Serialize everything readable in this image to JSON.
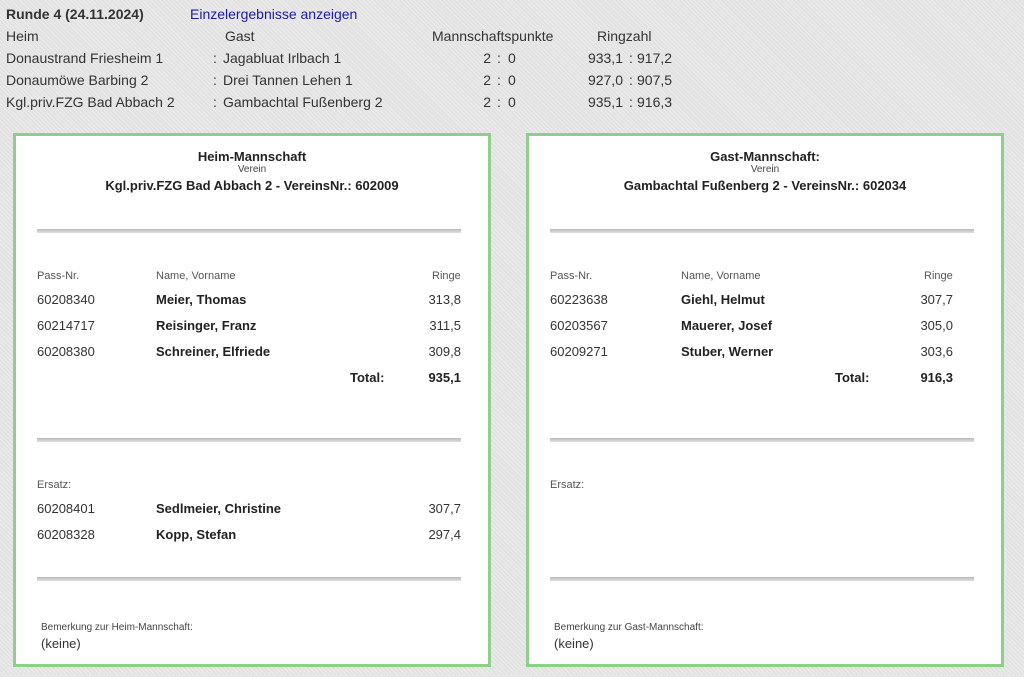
{
  "round": {
    "title": "Runde 4  (24.11.2024)",
    "details_link": "Einzelergebnisse anzeigen"
  },
  "results_header": {
    "home": "Heim",
    "guest": "Gast",
    "team_points": "Mannschaftspunkte",
    "ring_count": "Ringzahl"
  },
  "results": [
    {
      "home": "Donaustrand Friesheim 1",
      "sep": ":",
      "guest": "Jagabluat Irlbach 1",
      "p_home": "2",
      "p_colon": ":",
      "p_guest": "0",
      "r_home": "933,1",
      "r_colon": ":",
      "r_guest": "917,2"
    },
    {
      "home": "Donaumöwe Barbing 2",
      "sep": ":",
      "guest": "Drei Tannen Lehen 1",
      "p_home": "2",
      "p_colon": ":",
      "p_guest": "0",
      "r_home": "927,0",
      "r_colon": ":",
      "r_guest": "907,5"
    },
    {
      "home": "Kgl.priv.FZG Bad Abbach 2",
      "sep": ":",
      "guest": "Gambachtal Fußenberg 2",
      "p_home": "2",
      "p_colon": ":",
      "p_guest": "0",
      "r_home": "935,1",
      "r_colon": ":",
      "r_guest": "916,3"
    }
  ],
  "home_team": {
    "title": "Heim-Mannschaft",
    "club_label": "Verein",
    "club": "Kgl.priv.FZG Bad Abbach 2  -  VereinsNr.: 602009",
    "col_pass": "Pass-Nr.",
    "col_name": "Name, Vorname",
    "col_rings": "Ringe",
    "shooters": [
      {
        "pass": "60208340",
        "name": "Meier, Thomas",
        "rings": "313,8"
      },
      {
        "pass": "60214717",
        "name": "Reisinger, Franz",
        "rings": "311,5"
      },
      {
        "pass": "60208380",
        "name": "Schreiner, Elfriede",
        "rings": "309,8"
      }
    ],
    "total_label": "Total:",
    "total": "935,1",
    "subs_label": "Ersatz:",
    "subs": [
      {
        "pass": "60208401",
        "name": "Sedlmeier, Christine",
        "rings": "307,7"
      },
      {
        "pass": "60208328",
        "name": "Kopp, Stefan",
        "rings": "297,4"
      }
    ],
    "remark_label": "Bemerkung zur Heim-Mannschaft:",
    "remark": "(keine)"
  },
  "guest_team": {
    "title": "Gast-Mannschaft:",
    "club_label": "Verein",
    "club": "Gambachtal Fußenberg 2  -  VereinsNr.: 602034",
    "col_pass": "Pass-Nr.",
    "col_name": "Name, Vorname",
    "col_rings": "Ringe",
    "shooters": [
      {
        "pass": "60223638",
        "name": "Giehl, Helmut",
        "rings": "307,7"
      },
      {
        "pass": "60203567",
        "name": "Mauerer, Josef",
        "rings": "305,0"
      },
      {
        "pass": "60209271",
        "name": "Stuber, Werner",
        "rings": "303,6"
      }
    ],
    "total_label": "Total:",
    "total": "916,3",
    "subs_label": "Ersatz:",
    "remark_label": "Bemerkung zur Gast-Mannschaft:",
    "remark": "(keine)"
  },
  "colors": {
    "panel_border": "#8fcf8a",
    "link": "#1a1aa8",
    "page_background": "#e2e2e2"
  }
}
